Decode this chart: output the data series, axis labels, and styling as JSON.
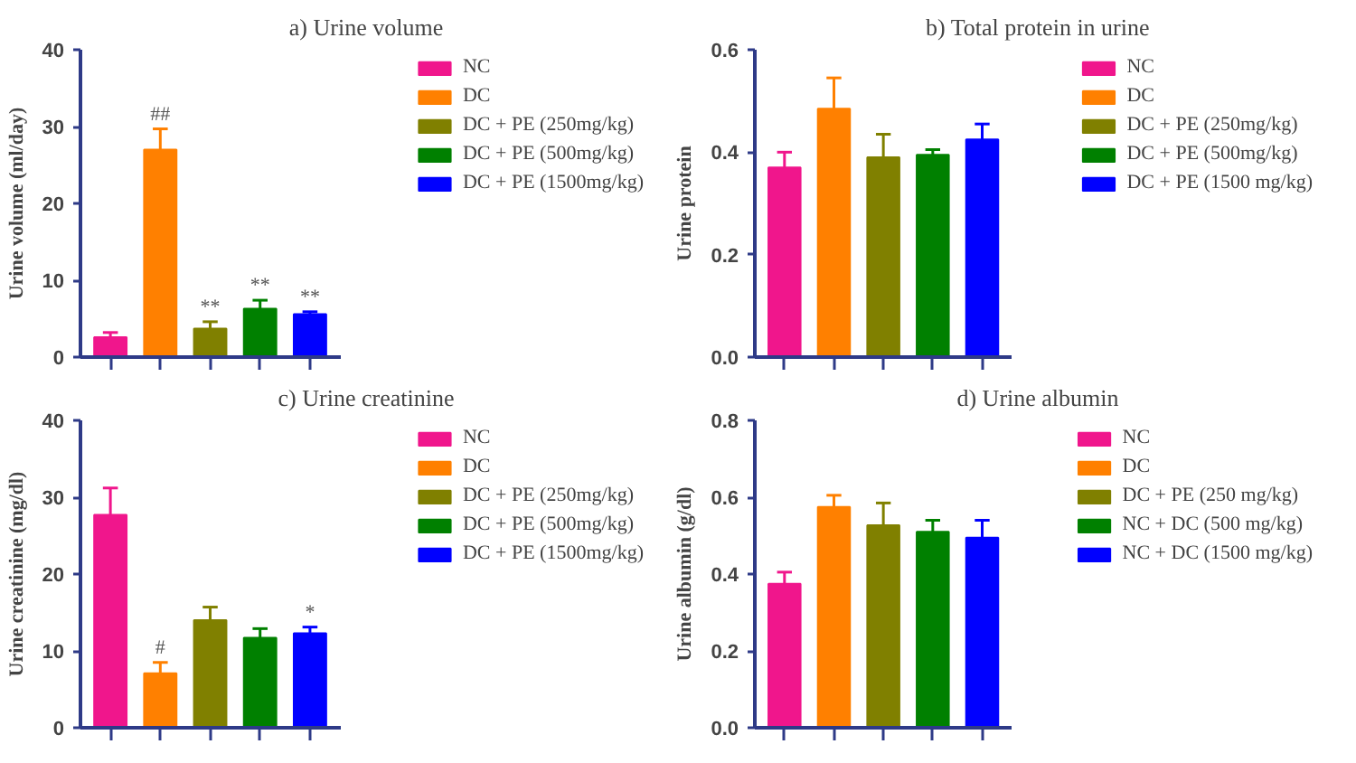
{
  "chart_data": [
    {
      "type": "bar",
      "title": "a) Urine volume",
      "ylabel": "Urine volume (ml/day)",
      "categories": [
        null,
        null,
        null,
        null,
        null
      ],
      "legend": "right",
      "tick_labels": "y",
      "ylim": [
        0,
        40
      ],
      "yticks": [
        0,
        10,
        20,
        30,
        40
      ],
      "series": [
        {
          "name": "NC",
          "color": "#f0168c",
          "values": [
            2.6,
            null,
            null,
            null,
            null
          ],
          "errors": [
            [
              2.6,
              3.2
            ],
            null,
            null,
            null,
            null
          ]
        },
        {
          "name": "DC",
          "color": "#ff8000",
          "values": [
            null,
            27,
            null,
            null,
            null
          ],
          "errors": [
            null,
            [
              27,
              29.7
            ],
            null,
            null,
            null
          ],
          "value_labels": [
            null,
            "##",
            null,
            null,
            null
          ]
        },
        {
          "name": "DC + PE (250mg/kg)",
          "color": "#808000",
          "values": [
            null,
            null,
            3.7,
            null,
            null
          ],
          "errors": [
            null,
            null,
            [
              3.7,
              4.6
            ],
            null,
            null
          ],
          "value_labels": [
            null,
            null,
            "**",
            null,
            null
          ]
        },
        {
          "name": "DC + PE (500mg/kg)",
          "color": "#008000",
          "values": [
            null,
            null,
            null,
            6.3,
            null
          ],
          "errors": [
            null,
            null,
            null,
            [
              6.3,
              7.4
            ],
            null
          ],
          "value_labels": [
            null,
            null,
            null,
            "**",
            null
          ]
        },
        {
          "name": "DC + PE (1500mg/kg)",
          "color": "#0000ff",
          "values": [
            null,
            null,
            null,
            null,
            5.6
          ],
          "errors": [
            null,
            null,
            null,
            null,
            [
              5.6,
              5.9
            ]
          ],
          "value_labels": [
            null,
            null,
            null,
            null,
            "**"
          ]
        }
      ]
    },
    {
      "type": "bar",
      "title": "b) Total protein in urine",
      "ylabel": "Urine protein",
      "categories": [
        null,
        null,
        null,
        null,
        null
      ],
      "legend": "right",
      "tick_labels": "y",
      "ylim": [
        0,
        0.6
      ],
      "yticks": [
        {
          "value": 0,
          "label": "0.0"
        },
        0.2,
        0.4,
        0.6
      ],
      "series": [
        {
          "name": "NC",
          "color": "#f0168c",
          "values": [
            0.37,
            null,
            null,
            null,
            null
          ],
          "errors": [
            [
              0.37,
              0.4
            ],
            null,
            null,
            null,
            null
          ]
        },
        {
          "name": "DC",
          "color": "#ff8000",
          "values": [
            null,
            0.485,
            null,
            null,
            null
          ],
          "errors": [
            null,
            [
              0.485,
              0.545
            ],
            null,
            null,
            null
          ]
        },
        {
          "name": "DC + PE (250mg/kg)",
          "color": "#808000",
          "values": [
            null,
            null,
            0.39,
            null,
            null
          ],
          "errors": [
            null,
            null,
            [
              0.39,
              0.435
            ],
            null,
            null
          ]
        },
        {
          "name": "DC + PE (500mg/kg)",
          "color": "#008000",
          "values": [
            null,
            null,
            null,
            0.395,
            null
          ],
          "errors": [
            null,
            null,
            null,
            [
              0.395,
              0.405
            ],
            null
          ]
        },
        {
          "name": "DC + PE (1500 mg/kg)",
          "color": "#0000ff",
          "values": [
            null,
            null,
            null,
            null,
            0.425
          ],
          "errors": [
            null,
            null,
            null,
            null,
            [
              0.425,
              0.455
            ]
          ]
        }
      ]
    },
    {
      "type": "bar",
      "title": "c) Urine creatinine",
      "ylabel": "Urine creatinine (mg/dl)",
      "categories": [
        null,
        null,
        null,
        null,
        null
      ],
      "legend": "right",
      "tick_labels": "y",
      "ylim": [
        0,
        40
      ],
      "yticks": [
        0,
        10,
        20,
        30,
        40
      ],
      "series": [
        {
          "name": "NC",
          "color": "#f0168c",
          "values": [
            27.7,
            null,
            null,
            null,
            null
          ],
          "errors": [
            [
              27.7,
              31.2
            ],
            null,
            null,
            null,
            null
          ]
        },
        {
          "name": "DC",
          "color": "#ff8000",
          "values": [
            null,
            7.1,
            null,
            null,
            null
          ],
          "errors": [
            null,
            [
              7.1,
              8.5
            ],
            null,
            null,
            null
          ],
          "value_labels": [
            null,
            "#",
            null,
            null,
            null
          ]
        },
        {
          "name": "DC + PE (250mg/kg)",
          "color": "#808000",
          "values": [
            null,
            null,
            14.0,
            null,
            null
          ],
          "errors": [
            null,
            null,
            [
              14.0,
              15.7
            ],
            null,
            null
          ]
        },
        {
          "name": "DC + PE (500mg/kg)",
          "color": "#008000",
          "values": [
            null,
            null,
            null,
            11.7,
            null
          ],
          "errors": [
            null,
            null,
            null,
            [
              11.7,
              12.9
            ],
            null
          ]
        },
        {
          "name": "DC + PE (1500mg/kg)",
          "color": "#0000ff",
          "values": [
            null,
            null,
            null,
            null,
            12.3
          ],
          "errors": [
            null,
            null,
            null,
            null,
            [
              12.3,
              13.1
            ]
          ],
          "value_labels": [
            null,
            null,
            null,
            null,
            "*"
          ]
        }
      ]
    },
    {
      "type": "bar",
      "title": "d) Urine albumin",
      "ylabel": "Urine albumin (g/dl)",
      "categories": [
        null,
        null,
        null,
        null,
        null
      ],
      "legend": "right",
      "tick_labels": "y",
      "ylim": [
        0,
        0.8
      ],
      "yticks": [
        {
          "value": 0,
          "label": "0.0"
        },
        0.2,
        0.4,
        0.6,
        0.8
      ],
      "series": [
        {
          "name": "NC",
          "color": "#f0168c",
          "values": [
            0.375,
            null,
            null,
            null,
            null
          ],
          "errors": [
            [
              0.375,
              0.405
            ],
            null,
            null,
            null,
            null
          ]
        },
        {
          "name": "DC",
          "color": "#ff8000",
          "values": [
            null,
            0.575,
            null,
            null,
            null
          ],
          "errors": [
            null,
            [
              0.575,
              0.605
            ],
            null,
            null,
            null
          ]
        },
        {
          "name": "DC + PE (250 mg/kg)",
          "color": "#808000",
          "values": [
            null,
            null,
            0.527,
            null,
            null
          ],
          "errors": [
            null,
            null,
            [
              0.527,
              0.585
            ],
            null,
            null
          ]
        },
        {
          "name": "NC + DC (500 mg/kg)",
          "color": "#008000",
          "values": [
            null,
            null,
            null,
            0.51,
            null
          ],
          "errors": [
            null,
            null,
            null,
            [
              0.51,
              0.54
            ],
            null
          ]
        },
        {
          "name": "NC + DC (1500 mg/kg)",
          "color": "#0000ff",
          "values": [
            null,
            null,
            null,
            null,
            0.495
          ],
          "errors": [
            null,
            null,
            null,
            null,
            [
              0.495,
              0.54
            ]
          ]
        }
      ]
    }
  ]
}
